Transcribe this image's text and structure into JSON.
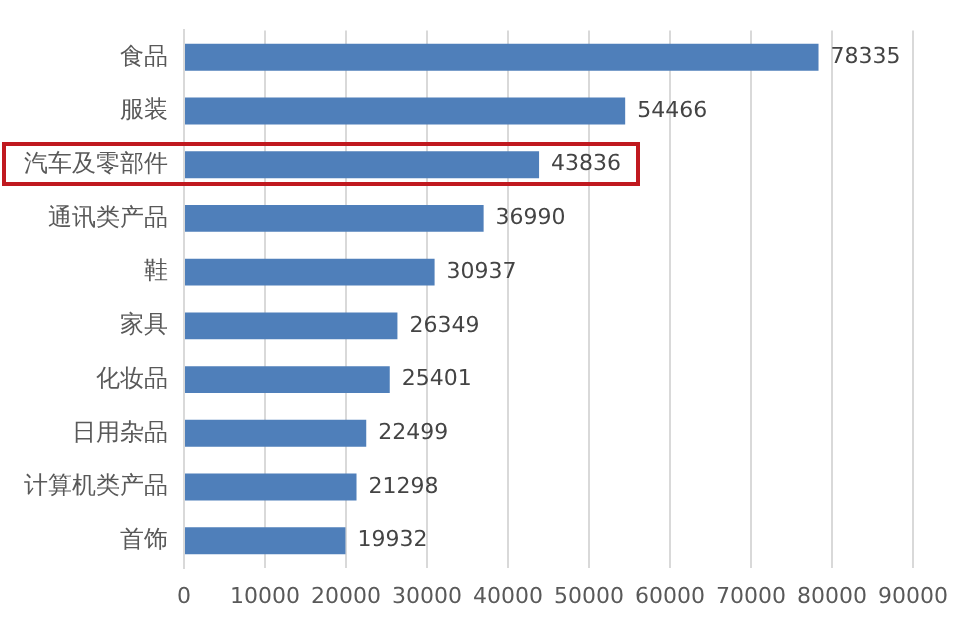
{
  "chart_data": {
    "type": "bar",
    "orientation": "horizontal",
    "categories": [
      "食品",
      "服装",
      "汽车及零部件",
      "通讯类产品",
      "鞋",
      "家具",
      "化妆品",
      "日用杂品",
      "计算机类产品",
      "首饰"
    ],
    "values": [
      78335,
      54466,
      43836,
      36990,
      30937,
      26349,
      25401,
      22499,
      21298,
      19932
    ],
    "color": "#4f7fba",
    "xlim": [
      0,
      90000
    ],
    "xticks": [
      0,
      10000,
      20000,
      30000,
      40000,
      50000,
      60000,
      70000,
      80000,
      90000
    ],
    "grid": "x",
    "data_labels": true
  }
}
